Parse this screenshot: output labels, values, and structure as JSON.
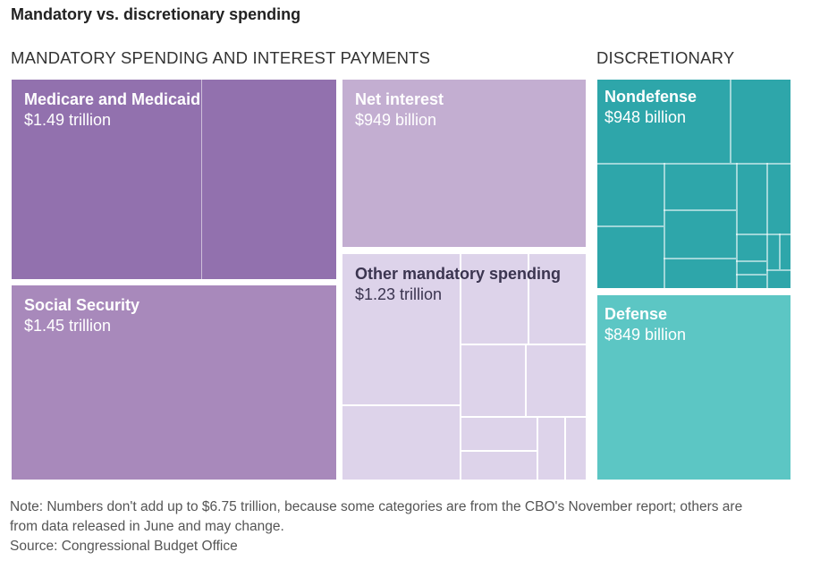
{
  "title": "Mandatory vs. discretionary spending",
  "sections": {
    "mandatory": "MANDATORY SPENDING AND INTEREST PAYMENTS",
    "discretionary": "DISCRETIONARY"
  },
  "chart_data": {
    "type": "treemap",
    "groups": [
      {
        "name": "MANDATORY SPENDING AND INTEREST PAYMENTS",
        "items": [
          {
            "name": "Medicare and Medicaid",
            "value_label": "$1.49 trillion",
            "value_billion": 1490,
            "color": "#9271ae"
          },
          {
            "name": "Social Security",
            "value_label": "$1.45 trillion",
            "value_billion": 1450,
            "color": "#a889bb"
          },
          {
            "name": "Net interest",
            "value_label": "$949 billion",
            "value_billion": 949,
            "color": "#c3aed1"
          },
          {
            "name": "Other mandatory spending",
            "value_label": "$1.23 trillion",
            "value_billion": 1230,
            "color": "#ddd3ea"
          }
        ]
      },
      {
        "name": "DISCRETIONARY",
        "items": [
          {
            "name": "Nondefense",
            "value_label": "$948 billion",
            "value_billion": 948,
            "color": "#2ea6aa"
          },
          {
            "name": "Defense",
            "value_label": "$849 billion",
            "value_billion": 849,
            "color": "#5cc6c4"
          }
        ]
      }
    ]
  },
  "note": {
    "line1": "Note: Numbers don't add up to $6.75 trillion, because some categories are from the CBO's November report; others are",
    "line2": "from data released in June and may change.",
    "source": "Source: Congressional Budget Office"
  }
}
